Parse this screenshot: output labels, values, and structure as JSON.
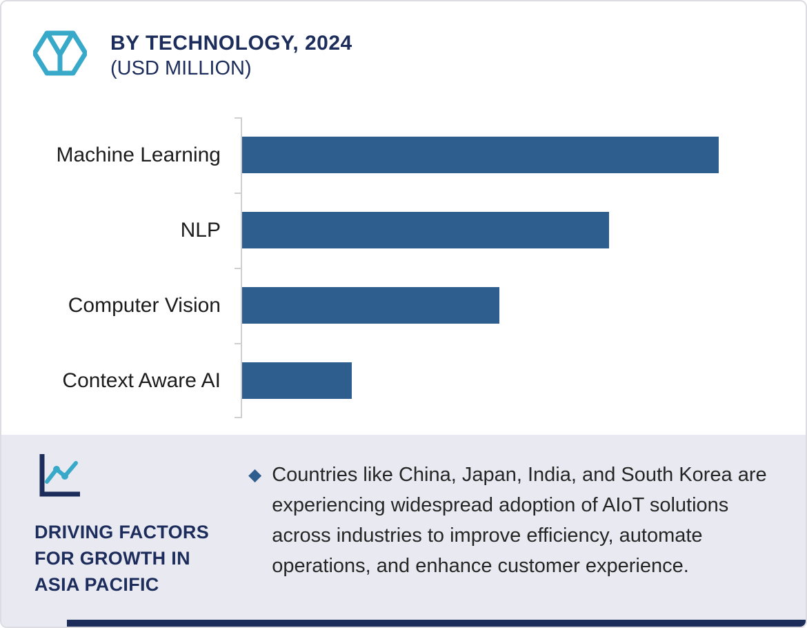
{
  "header": {
    "title": "BY TECHNOLOGY, 2024",
    "subtitle": "(USD MILLION)",
    "logo_icon": "hexagon-y-logo-icon"
  },
  "chart_data": {
    "type": "bar",
    "orientation": "horizontal",
    "title": "BY TECHNOLOGY, 2024 (USD MILLION)",
    "unit": "USD Million",
    "categories": [
      "Machine Learning",
      "NLP",
      "Computer Vision",
      "Context Aware AI"
    ],
    "values": [
      100,
      77,
      54,
      23
    ],
    "xlim": [
      0,
      110
    ],
    "value_scale": "relative; axis has no numeric tick labels, longest bar = 100",
    "grid": false,
    "legend": false,
    "bar_color": "#2e5e8e"
  },
  "footer": {
    "icon": "line-chart-icon",
    "heading": "DRIVING FACTORS\nFOR GROWTH IN\nASIA PACIFIC",
    "bullet_marker": "◆",
    "bullet_text": "Countries like China, Japan, India, and South Korea are experiencing widespread adoption of AIoT solutions across industries to improve efficiency, automate operations, and enhance customer experience."
  },
  "colors": {
    "bar": "#2e5e8e",
    "navy": "#1d2d5b",
    "teal": "#38a9c8",
    "footer_bg": "#e9e9f1",
    "axis": "#cfcfd2",
    "bottom_strip": "#1d2d5b"
  }
}
